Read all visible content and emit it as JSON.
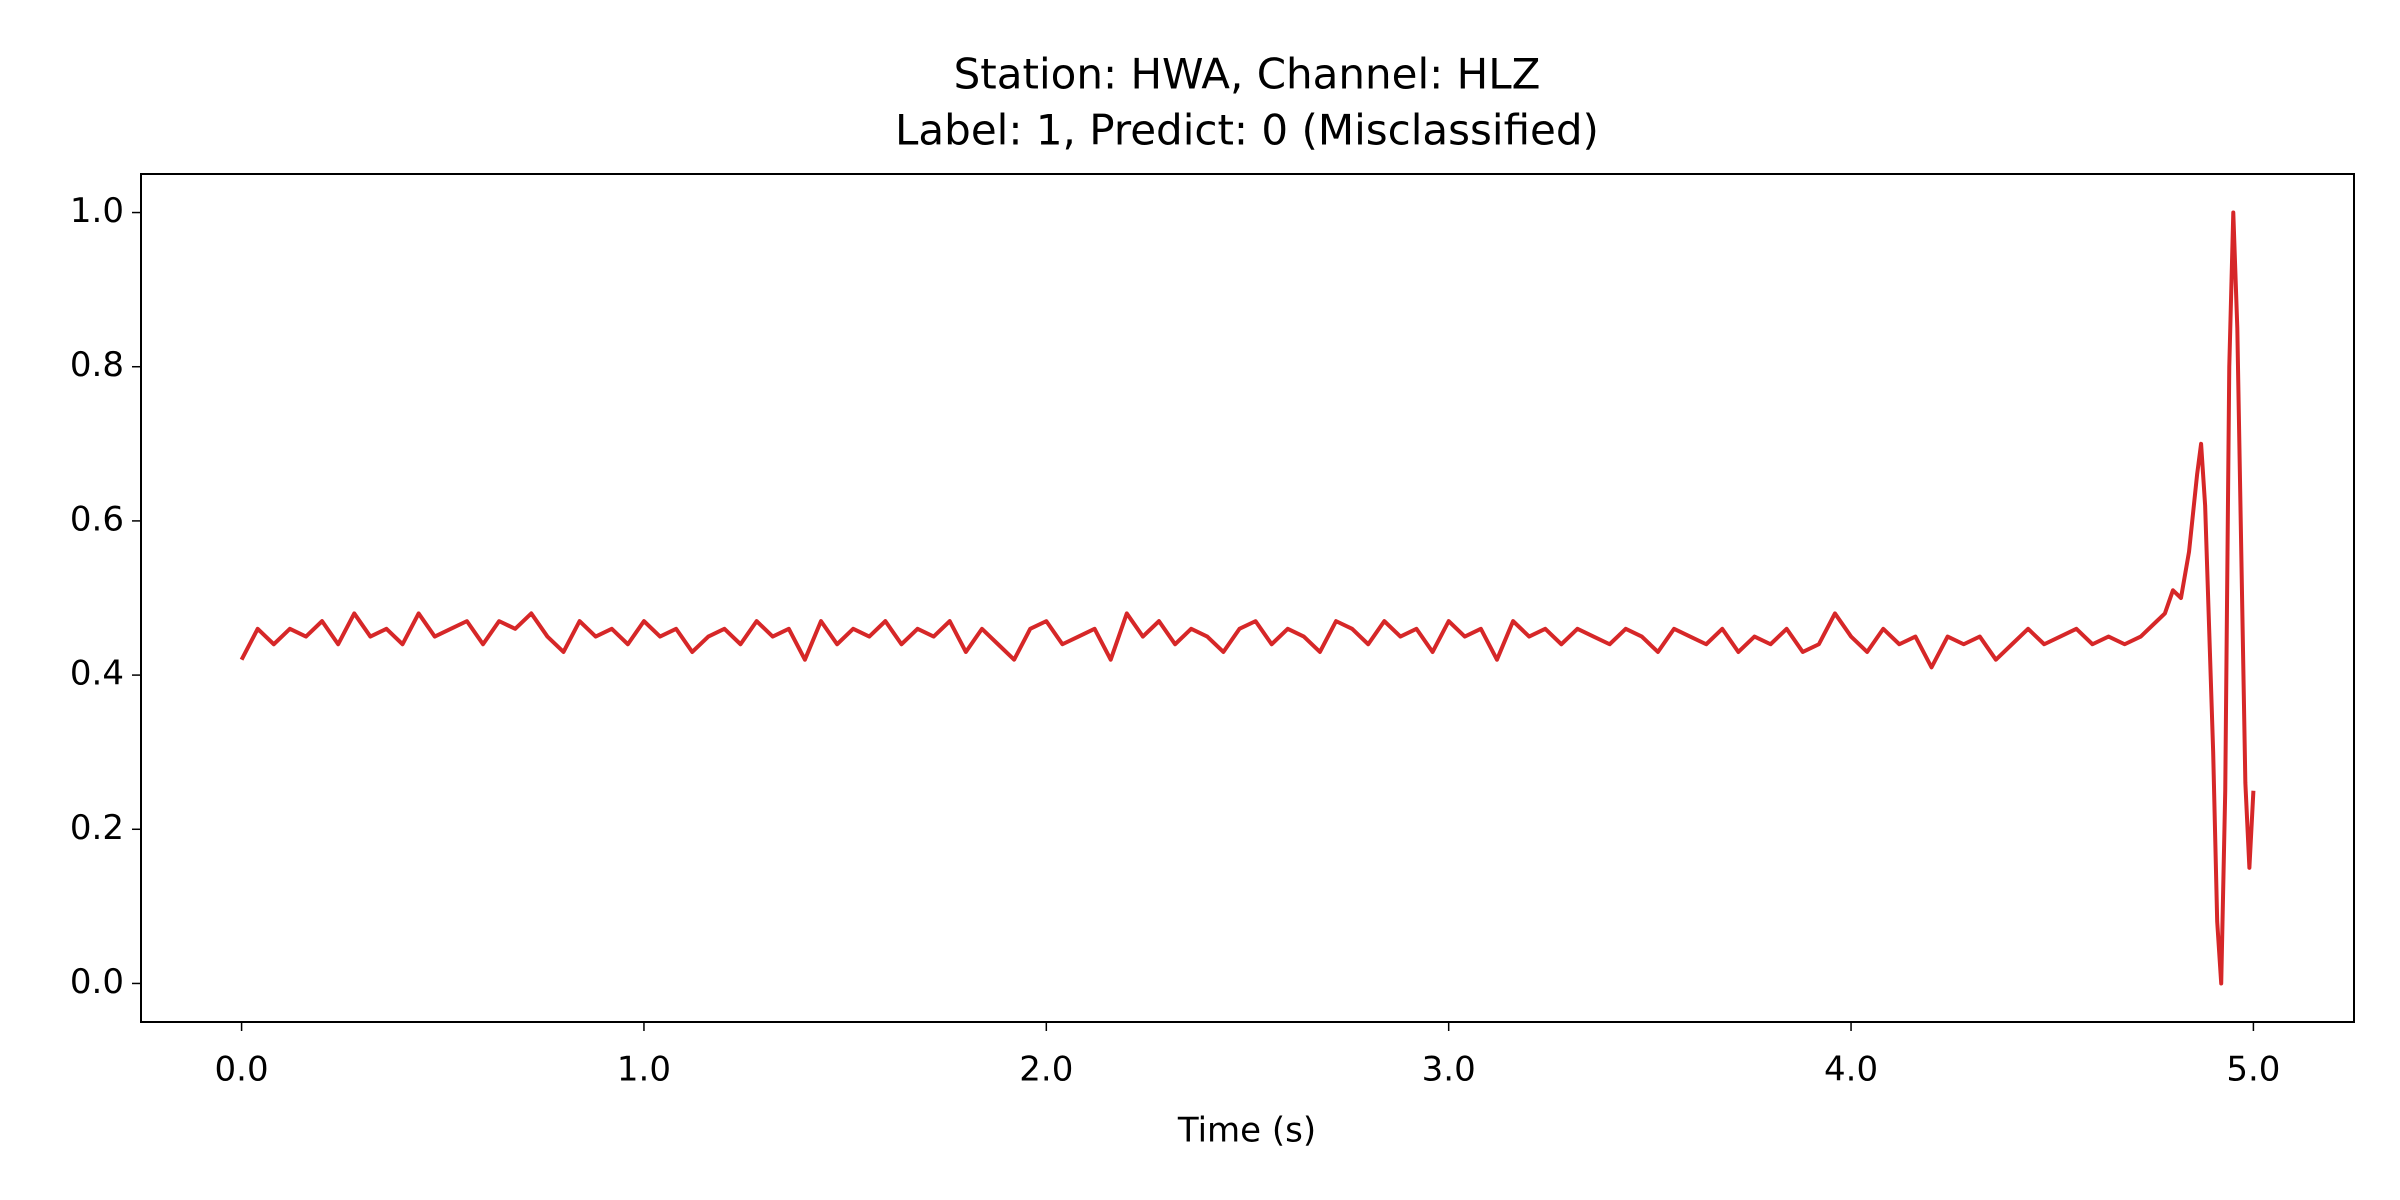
{
  "chart_data": {
    "type": "line",
    "title": "Station: HWA, Channel: HLZ",
    "subtitle": "Label: 1, Predict: 0 (Misclassified)",
    "xlabel": "Time (s)",
    "x": [
      0,
      0.04,
      0.08,
      0.12,
      0.16,
      0.2,
      0.24,
      0.28,
      0.32,
      0.36,
      0.4,
      0.44,
      0.48,
      0.52,
      0.56,
      0.6,
      0.64,
      0.68,
      0.72,
      0.76,
      0.8,
      0.84,
      0.88,
      0.92,
      0.96,
      1,
      1.04,
      1.08,
      1.12,
      1.16,
      1.2,
      1.24,
      1.28,
      1.32,
      1.36,
      1.4,
      1.44,
      1.48,
      1.52,
      1.56,
      1.6,
      1.64,
      1.68,
      1.72,
      1.76,
      1.8,
      1.84,
      1.88,
      1.92,
      1.96,
      2,
      2.04,
      2.08,
      2.12,
      2.16,
      2.2,
      2.24,
      2.28,
      2.32,
      2.36,
      2.4,
      2.44,
      2.48,
      2.52,
      2.56,
      2.6,
      2.64,
      2.68,
      2.72,
      2.76,
      2.8,
      2.84,
      2.88,
      2.92,
      2.96,
      3,
      3.04,
      3.08,
      3.12,
      3.16,
      3.2,
      3.24,
      3.28,
      3.32,
      3.36,
      3.4,
      3.44,
      3.48,
      3.52,
      3.56,
      3.6,
      3.64,
      3.68,
      3.72,
      3.76,
      3.8,
      3.84,
      3.88,
      3.92,
      3.96,
      4,
      4.04,
      4.08,
      4.12,
      4.16,
      4.2,
      4.24,
      4.28,
      4.32,
      4.36,
      4.4,
      4.44,
      4.48,
      4.52,
      4.56,
      4.6,
      4.64,
      4.68,
      4.72,
      4.76,
      4.78,
      4.8,
      4.82,
      4.84,
      4.86,
      4.87,
      4.88,
      4.9,
      4.91,
      4.92,
      4.93,
      4.94,
      4.95,
      4.96,
      4.98,
      4.99,
      5
    ],
    "series": [
      {
        "color": "#d62728",
        "values": [
          0.42,
          0.46,
          0.44,
          0.46,
          0.45,
          0.47,
          0.44,
          0.48,
          0.45,
          0.46,
          0.44,
          0.48,
          0.45,
          0.46,
          0.47,
          0.44,
          0.47,
          0.46,
          0.48,
          0.45,
          0.43,
          0.47,
          0.45,
          0.46,
          0.44,
          0.47,
          0.45,
          0.46,
          0.43,
          0.45,
          0.46,
          0.44,
          0.47,
          0.45,
          0.46,
          0.42,
          0.47,
          0.44,
          0.46,
          0.45,
          0.47,
          0.44,
          0.46,
          0.45,
          0.47,
          0.43,
          0.46,
          0.44,
          0.42,
          0.46,
          0.47,
          0.44,
          0.45,
          0.46,
          0.42,
          0.48,
          0.45,
          0.47,
          0.44,
          0.46,
          0.45,
          0.43,
          0.46,
          0.47,
          0.44,
          0.46,
          0.45,
          0.43,
          0.47,
          0.46,
          0.44,
          0.47,
          0.45,
          0.46,
          0.43,
          0.47,
          0.45,
          0.46,
          0.42,
          0.47,
          0.45,
          0.46,
          0.44,
          0.46,
          0.45,
          0.44,
          0.46,
          0.45,
          0.43,
          0.46,
          0.45,
          0.44,
          0.46,
          0.43,
          0.45,
          0.44,
          0.46,
          0.43,
          0.44,
          0.48,
          0.45,
          0.43,
          0.46,
          0.44,
          0.45,
          0.41,
          0.45,
          0.44,
          0.45,
          0.42,
          0.44,
          0.46,
          0.44,
          0.45,
          0.46,
          0.44,
          0.45,
          0.44,
          0.45,
          0.47,
          0.48,
          0.51,
          0.5,
          0.56,
          0.66,
          0.7,
          0.62,
          0.3,
          0.08,
          0,
          0.25,
          0.8,
          1,
          0.85,
          0.26,
          0.15,
          0.25
        ]
      }
    ],
    "xlim": [
      -0.25,
      5.25
    ],
    "ylim": [
      -0.05,
      1.05
    ],
    "xticks": [
      {
        "value": 0,
        "label": "0.0"
      },
      {
        "value": 1,
        "label": "1.0"
      },
      {
        "value": 2,
        "label": "2.0"
      },
      {
        "value": 3,
        "label": "3.0"
      },
      {
        "value": 4,
        "label": "4.0"
      },
      {
        "value": 5,
        "label": "5.0"
      }
    ],
    "yticks": [
      {
        "value": 0,
        "label": "0.0"
      },
      0.2,
      0.4,
      0.6,
      0.8,
      {
        "value": 1,
        "label": "1.0"
      }
    ],
    "grid": false
  }
}
